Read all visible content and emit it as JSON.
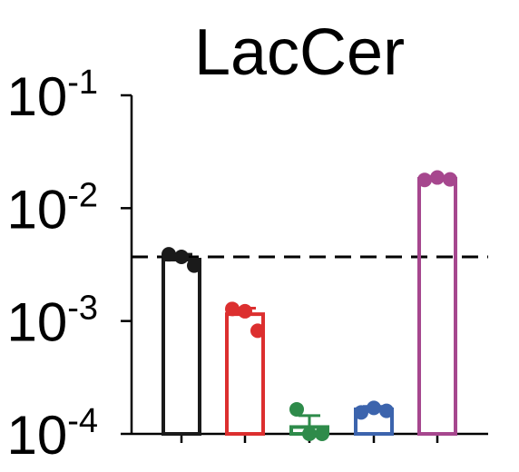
{
  "chart_data": {
    "type": "bar",
    "title": "LacCer",
    "xlabel": "",
    "ylabel": "",
    "yscale": "log",
    "ylim": [
      0.0001,
      0.1
    ],
    "yticks": [
      {
        "value": 0.1,
        "base": "10",
        "exp": "-1"
      },
      {
        "value": 0.01,
        "base": "10",
        "exp": "-2"
      },
      {
        "value": 0.001,
        "base": "10",
        "exp": "-3"
      },
      {
        "value": 0.0001,
        "base": "10",
        "exp": "-4"
      }
    ],
    "reference_line": {
      "value": 0.0037,
      "style": "dashed"
    },
    "grid": false,
    "legend": "none",
    "bars": [
      {
        "value": 0.0035,
        "error": 0.0004,
        "color": "#1a1a1a",
        "points": [
          0.0039,
          0.0037,
          0.0031
        ]
      },
      {
        "value": 0.00115,
        "error": 0.00015,
        "color": "#dc2f2f",
        "points": [
          0.00128,
          0.00122,
          0.00082
        ]
      },
      {
        "value": 0.000115,
        "error": 3e-05,
        "color": "#2e8b4a",
        "points": [
          0.000165,
          0.0001,
          0.0001
        ]
      },
      {
        "value": 0.000165,
        "error": 1e-05,
        "color": "#3c64ad",
        "points": [
          0.000155,
          0.00017,
          0.00016
        ]
      },
      {
        "value": 0.0182,
        "error": 0.0008,
        "color": "#a6478e",
        "points": [
          0.0178,
          0.0187,
          0.018
        ]
      }
    ]
  }
}
